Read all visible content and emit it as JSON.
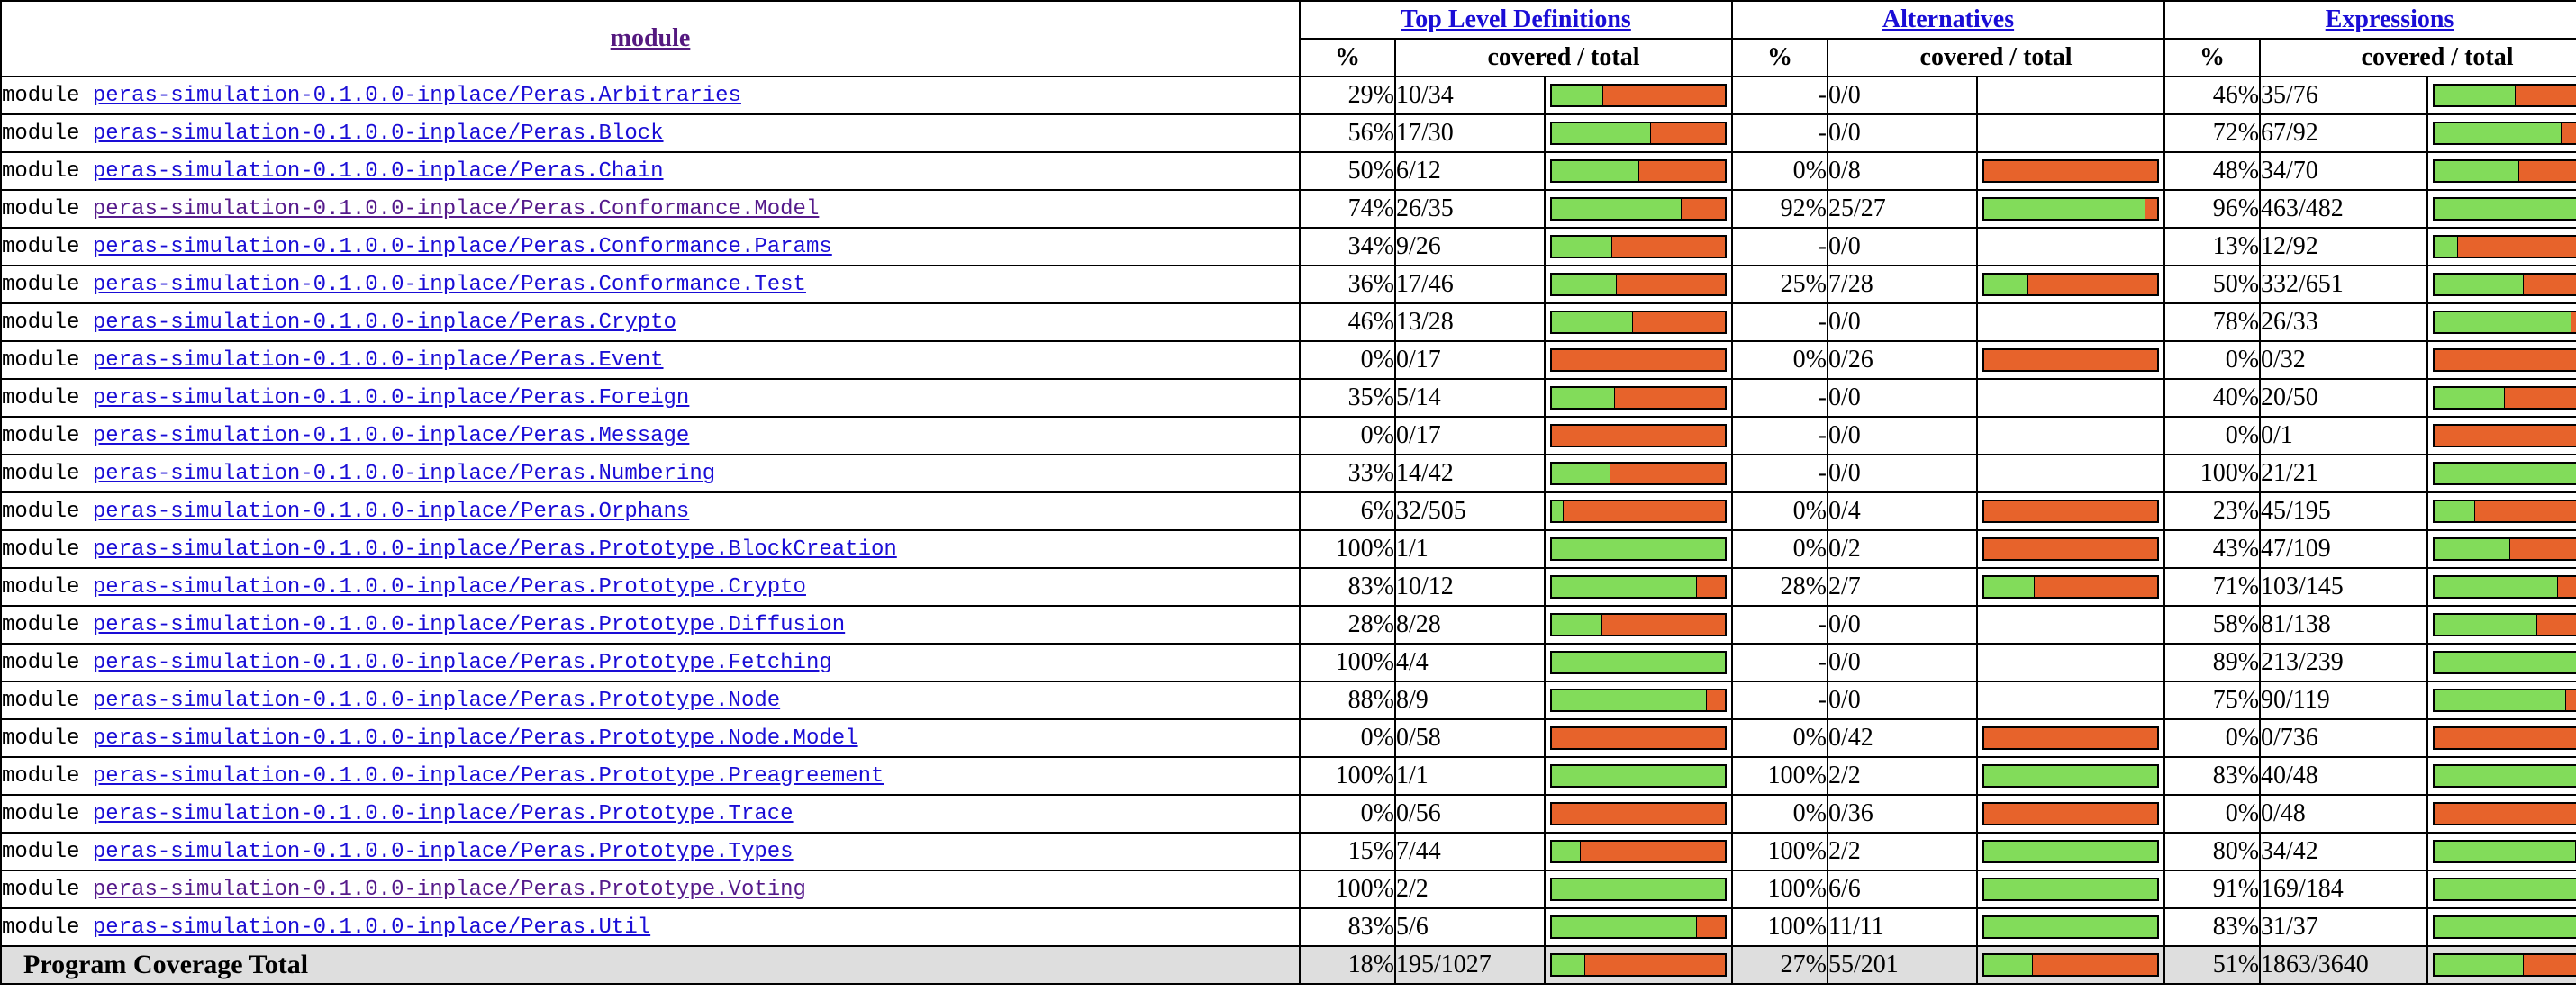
{
  "headers": {
    "module": "module",
    "top_level": "Top Level Definitions",
    "alternatives": "Alternatives",
    "expressions": "Expressions",
    "pct": "%",
    "covered_total": "covered / total"
  },
  "module_prefix": "module",
  "rows": [
    {
      "name": "peras-simulation-0.1.0.0-inplace/Peras.Arbitraries",
      "visited": false,
      "tl_pct": "29%",
      "tl_ct": "10/34",
      "tl_frac": 0.294,
      "alt_pct": "-",
      "alt_ct": "0/0",
      "alt_frac": null,
      "ex_pct": "46%",
      "ex_ct": "35/76",
      "ex_frac": 0.461
    },
    {
      "name": "peras-simulation-0.1.0.0-inplace/Peras.Block",
      "visited": false,
      "tl_pct": "56%",
      "tl_ct": "17/30",
      "tl_frac": 0.567,
      "alt_pct": "-",
      "alt_ct": "0/0",
      "alt_frac": null,
      "ex_pct": "72%",
      "ex_ct": "67/92",
      "ex_frac": 0.728
    },
    {
      "name": "peras-simulation-0.1.0.0-inplace/Peras.Chain",
      "visited": false,
      "tl_pct": "50%",
      "tl_ct": "6/12",
      "tl_frac": 0.5,
      "alt_pct": "0%",
      "alt_ct": "0/8",
      "alt_frac": 0,
      "ex_pct": "48%",
      "ex_ct": "34/70",
      "ex_frac": 0.486
    },
    {
      "name": "peras-simulation-0.1.0.0-inplace/Peras.Conformance.Model",
      "visited": true,
      "tl_pct": "74%",
      "tl_ct": "26/35",
      "tl_frac": 0.743,
      "alt_pct": "92%",
      "alt_ct": "25/27",
      "alt_frac": 0.926,
      "ex_pct": "96%",
      "ex_ct": "463/482",
      "ex_frac": 0.961
    },
    {
      "name": "peras-simulation-0.1.0.0-inplace/Peras.Conformance.Params",
      "visited": false,
      "tl_pct": "34%",
      "tl_ct": "9/26",
      "tl_frac": 0.346,
      "alt_pct": "-",
      "alt_ct": "0/0",
      "alt_frac": null,
      "ex_pct": "13%",
      "ex_ct": "12/92",
      "ex_frac": 0.13
    },
    {
      "name": "peras-simulation-0.1.0.0-inplace/Peras.Conformance.Test",
      "visited": false,
      "tl_pct": "36%",
      "tl_ct": "17/46",
      "tl_frac": 0.37,
      "alt_pct": "25%",
      "alt_ct": "7/28",
      "alt_frac": 0.25,
      "ex_pct": "50%",
      "ex_ct": "332/651",
      "ex_frac": 0.51
    },
    {
      "name": "peras-simulation-0.1.0.0-inplace/Peras.Crypto",
      "visited": false,
      "tl_pct": "46%",
      "tl_ct": "13/28",
      "tl_frac": 0.464,
      "alt_pct": "-",
      "alt_ct": "0/0",
      "alt_frac": null,
      "ex_pct": "78%",
      "ex_ct": "26/33",
      "ex_frac": 0.788
    },
    {
      "name": "peras-simulation-0.1.0.0-inplace/Peras.Event",
      "visited": false,
      "tl_pct": "0%",
      "tl_ct": "0/17",
      "tl_frac": 0,
      "alt_pct": "0%",
      "alt_ct": "0/26",
      "alt_frac": 0,
      "ex_pct": "0%",
      "ex_ct": "0/32",
      "ex_frac": 0
    },
    {
      "name": "peras-simulation-0.1.0.0-inplace/Peras.Foreign",
      "visited": false,
      "tl_pct": "35%",
      "tl_ct": "5/14",
      "tl_frac": 0.357,
      "alt_pct": "-",
      "alt_ct": "0/0",
      "alt_frac": null,
      "ex_pct": "40%",
      "ex_ct": "20/50",
      "ex_frac": 0.4
    },
    {
      "name": "peras-simulation-0.1.0.0-inplace/Peras.Message",
      "visited": false,
      "tl_pct": "0%",
      "tl_ct": "0/17",
      "tl_frac": 0,
      "alt_pct": "-",
      "alt_ct": "0/0",
      "alt_frac": null,
      "ex_pct": "0%",
      "ex_ct": "0/1",
      "ex_frac": 0
    },
    {
      "name": "peras-simulation-0.1.0.0-inplace/Peras.Numbering",
      "visited": false,
      "tl_pct": "33%",
      "tl_ct": "14/42",
      "tl_frac": 0.333,
      "alt_pct": "-",
      "alt_ct": "0/0",
      "alt_frac": null,
      "ex_pct": "100%",
      "ex_ct": "21/21",
      "ex_frac": 1
    },
    {
      "name": "peras-simulation-0.1.0.0-inplace/Peras.Orphans",
      "visited": false,
      "tl_pct": "6%",
      "tl_ct": "32/505",
      "tl_frac": 0.063,
      "alt_pct": "0%",
      "alt_ct": "0/4",
      "alt_frac": 0,
      "ex_pct": "23%",
      "ex_ct": "45/195",
      "ex_frac": 0.231
    },
    {
      "name": "peras-simulation-0.1.0.0-inplace/Peras.Prototype.BlockCreation",
      "visited": false,
      "tl_pct": "100%",
      "tl_ct": "1/1",
      "tl_frac": 1,
      "alt_pct": "0%",
      "alt_ct": "0/2",
      "alt_frac": 0,
      "ex_pct": "43%",
      "ex_ct": "47/109",
      "ex_frac": 0.431
    },
    {
      "name": "peras-simulation-0.1.0.0-inplace/Peras.Prototype.Crypto",
      "visited": false,
      "tl_pct": "83%",
      "tl_ct": "10/12",
      "tl_frac": 0.833,
      "alt_pct": "28%",
      "alt_ct": "2/7",
      "alt_frac": 0.286,
      "ex_pct": "71%",
      "ex_ct": "103/145",
      "ex_frac": 0.71
    },
    {
      "name": "peras-simulation-0.1.0.0-inplace/Peras.Prototype.Diffusion",
      "visited": false,
      "tl_pct": "28%",
      "tl_ct": "8/28",
      "tl_frac": 0.286,
      "alt_pct": "-",
      "alt_ct": "0/0",
      "alt_frac": null,
      "ex_pct": "58%",
      "ex_ct": "81/138",
      "ex_frac": 0.587
    },
    {
      "name": "peras-simulation-0.1.0.0-inplace/Peras.Prototype.Fetching",
      "visited": false,
      "tl_pct": "100%",
      "tl_ct": "4/4",
      "tl_frac": 1,
      "alt_pct": "-",
      "alt_ct": "0/0",
      "alt_frac": null,
      "ex_pct": "89%",
      "ex_ct": "213/239",
      "ex_frac": 0.891
    },
    {
      "name": "peras-simulation-0.1.0.0-inplace/Peras.Prototype.Node",
      "visited": false,
      "tl_pct": "88%",
      "tl_ct": "8/9",
      "tl_frac": 0.889,
      "alt_pct": "-",
      "alt_ct": "0/0",
      "alt_frac": null,
      "ex_pct": "75%",
      "ex_ct": "90/119",
      "ex_frac": 0.756
    },
    {
      "name": "peras-simulation-0.1.0.0-inplace/Peras.Prototype.Node.Model",
      "visited": false,
      "tl_pct": "0%",
      "tl_ct": "0/58",
      "tl_frac": 0,
      "alt_pct": "0%",
      "alt_ct": "0/42",
      "alt_frac": 0,
      "ex_pct": "0%",
      "ex_ct": "0/736",
      "ex_frac": 0
    },
    {
      "name": "peras-simulation-0.1.0.0-inplace/Peras.Prototype.Preagreement",
      "visited": false,
      "tl_pct": "100%",
      "tl_ct": "1/1",
      "tl_frac": 1,
      "alt_pct": "100%",
      "alt_ct": "2/2",
      "alt_frac": 1,
      "ex_pct": "83%",
      "ex_ct": "40/48",
      "ex_frac": 0.833
    },
    {
      "name": "peras-simulation-0.1.0.0-inplace/Peras.Prototype.Trace",
      "visited": false,
      "tl_pct": "0%",
      "tl_ct": "0/56",
      "tl_frac": 0,
      "alt_pct": "0%",
      "alt_ct": "0/36",
      "alt_frac": 0,
      "ex_pct": "0%",
      "ex_ct": "0/48",
      "ex_frac": 0
    },
    {
      "name": "peras-simulation-0.1.0.0-inplace/Peras.Prototype.Types",
      "visited": false,
      "tl_pct": "15%",
      "tl_ct": "7/44",
      "tl_frac": 0.159,
      "alt_pct": "100%",
      "alt_ct": "2/2",
      "alt_frac": 1,
      "ex_pct": "80%",
      "ex_ct": "34/42",
      "ex_frac": 0.81
    },
    {
      "name": "peras-simulation-0.1.0.0-inplace/Peras.Prototype.Voting",
      "visited": true,
      "tl_pct": "100%",
      "tl_ct": "2/2",
      "tl_frac": 1,
      "alt_pct": "100%",
      "alt_ct": "6/6",
      "alt_frac": 1,
      "ex_pct": "91%",
      "ex_ct": "169/184",
      "ex_frac": 0.918
    },
    {
      "name": "peras-simulation-0.1.0.0-inplace/Peras.Util",
      "visited": false,
      "tl_pct": "83%",
      "tl_ct": "5/6",
      "tl_frac": 0.833,
      "alt_pct": "100%",
      "alt_ct": "11/11",
      "alt_frac": 1,
      "ex_pct": "83%",
      "ex_ct": "31/37",
      "ex_frac": 0.838
    }
  ],
  "total": {
    "label": "Program Coverage Total",
    "tl_pct": "18%",
    "tl_ct": "195/1027",
    "tl_frac": 0.19,
    "alt_pct": "27%",
    "alt_ct": "55/201",
    "alt_frac": 0.274,
    "ex_pct": "51%",
    "ex_ct": "1863/3640",
    "ex_frac": 0.512
  },
  "colors": {
    "covered": "#82dc5a",
    "uncovered": "#e7632b",
    "link": "#1a0dd6",
    "visited_link": "#551a8b",
    "total_row_bg": "#dedede"
  }
}
